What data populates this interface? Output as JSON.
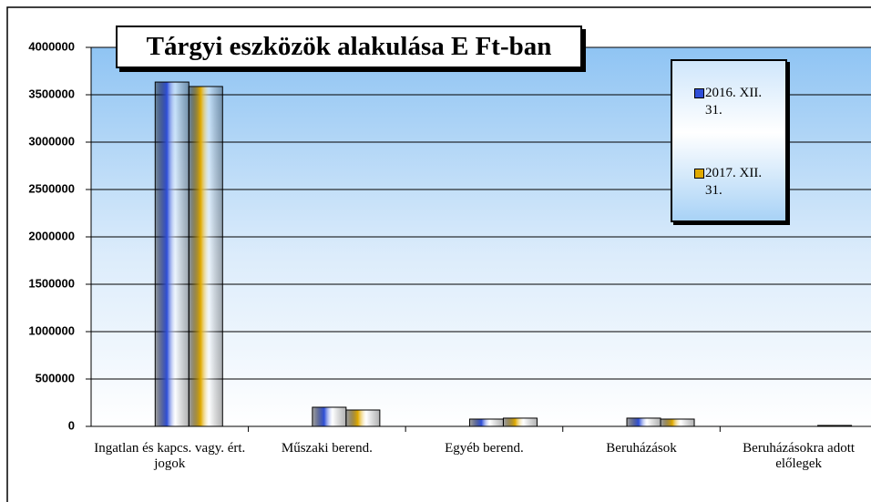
{
  "chart_data": {
    "type": "bar",
    "title": "Tárgyi eszközök alakulása E Ft-ban",
    "categories": [
      "Ingatlan és kapcs. vagy. ért. jogok",
      "Műszaki berend.",
      "Egyéb berend.",
      "Beruházások",
      "Beruházásokra adott előlegek"
    ],
    "series": [
      {
        "name": "2016. XII. 31.",
        "color": "#2f4fd8",
        "values": [
          3634000,
          202000,
          77000,
          87000,
          0
        ]
      },
      {
        "name": "2017. XII. 31.",
        "color": "#e0aa00",
        "values": [
          3587000,
          173000,
          87000,
          77000,
          10000
        ]
      }
    ],
    "ylim": [
      0,
      4000000
    ],
    "yticks": [
      0,
      500000,
      1000000,
      1500000,
      2000000,
      2500000,
      3000000,
      3500000,
      4000000
    ],
    "grid": true
  }
}
